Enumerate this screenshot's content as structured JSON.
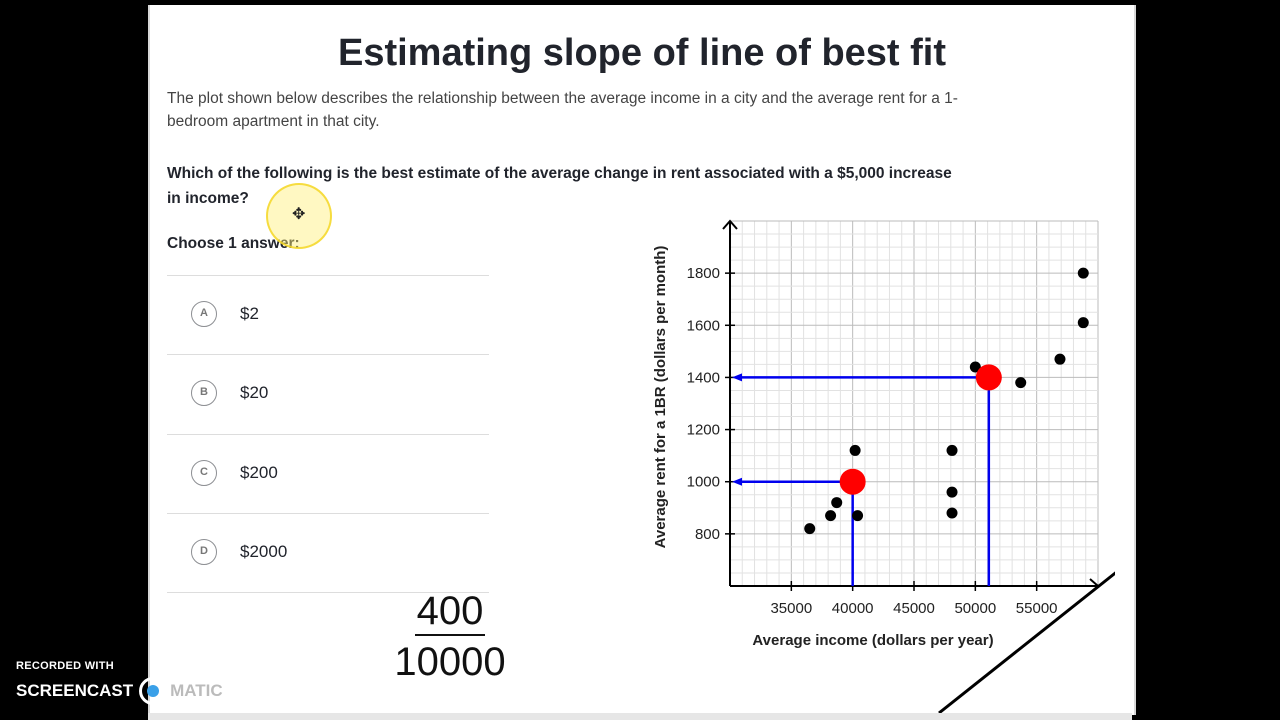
{
  "title": "Estimating slope of line of best fit",
  "description": "The plot shown below describes the relationship between the average income in a city and the average rent for a 1-bedroom apartment in that city.",
  "question": "Which of the following is the best estimate of the average change in rent associated with a $5,000 increase in income?",
  "choose_label": "Choose 1 answer:",
  "choices": [
    {
      "letter": "A",
      "label": "$2"
    },
    {
      "letter": "B",
      "label": "$20"
    },
    {
      "letter": "C",
      "label": "$200"
    },
    {
      "letter": "D",
      "label": "$2000"
    }
  ],
  "handwritten": {
    "numerator": "400",
    "denominator": "10000"
  },
  "recording": {
    "line1": "RECORDED WITH",
    "brand": "SCREENCAST",
    "brand2": "MATIC"
  },
  "colors": {
    "point": "#000000",
    "highlight_point": "#ff0000",
    "guide_line": "#0000ee",
    "annotation": "#000000"
  },
  "chart_data": {
    "type": "scatter",
    "xlabel": "Average income (dollars per year)",
    "ylabel": "Average rent for a 1BR (dollars per month)",
    "xlim": [
      30000,
      60000
    ],
    "ylim": [
      600,
      2000
    ],
    "xticks": [
      35000,
      40000,
      45000,
      50000,
      55000
    ],
    "yticks": [
      800,
      1000,
      1200,
      1400,
      1600,
      1800
    ],
    "grid": true,
    "points": [
      {
        "x": 36500,
        "y": 820
      },
      {
        "x": 38200,
        "y": 870
      },
      {
        "x": 38700,
        "y": 920
      },
      {
        "x": 40200,
        "y": 1120
      },
      {
        "x": 40400,
        "y": 870
      },
      {
        "x": 48100,
        "y": 1120
      },
      {
        "x": 48100,
        "y": 960
      },
      {
        "x": 48100,
        "y": 880
      },
      {
        "x": 50000,
        "y": 1440
      },
      {
        "x": 53700,
        "y": 1380
      },
      {
        "x": 56900,
        "y": 1470
      },
      {
        "x": 58800,
        "y": 1800
      },
      {
        "x": 58800,
        "y": 1610
      }
    ],
    "highlighted_points": [
      {
        "x": 40000,
        "y": 1000
      },
      {
        "x": 51100,
        "y": 1400
      }
    ]
  }
}
